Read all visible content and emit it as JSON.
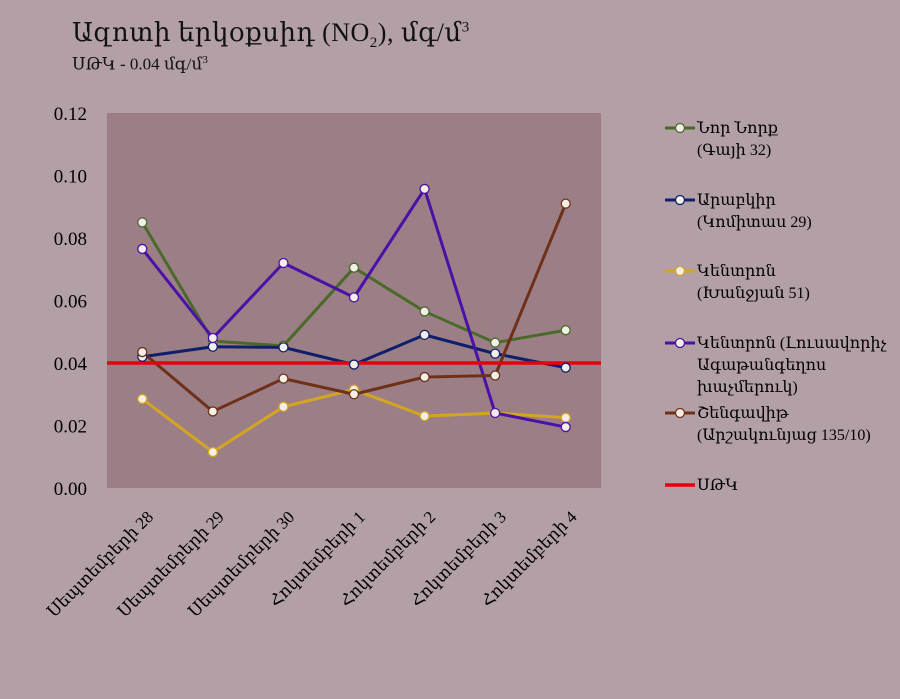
{
  "title": {
    "text": "Ազոտի  երկօքսիդ (NO",
    "sub": "2",
    "tail": "), մգ/մ",
    "sup": "3"
  },
  "subtitle": {
    "text": "ՍԹԿ - 0.04 մգ/մ",
    "sup": "3"
  },
  "chart_data": {
    "type": "line",
    "categories": [
      "Սեպտեմբերի 28",
      "Սեպտեմբերի 29",
      "Սեպտեմբերի 30",
      "Հոկտեմբերի 1",
      "Հոկտեմբերի 2",
      "Հոկտեմբերի 3",
      "Հոկտեմբերի 4"
    ],
    "ylim": [
      0,
      0.12
    ],
    "yticks": [
      "0.00",
      "0.02",
      "0.04",
      "0.06",
      "0.08",
      "0.10",
      "0.12"
    ],
    "grid": false,
    "legend_position": "right",
    "plot_bg": "#9c7f86",
    "series": [
      {
        "name_lines": [
          "Նոր Նորք",
          "(Գայի 32)"
        ],
        "color": "#4a6a2a",
        "values": [
          0.085,
          0.047,
          0.0455,
          0.0705,
          0.0565,
          0.0465,
          0.0505
        ]
      },
      {
        "name_lines": [
          "Արաբկիր",
          "(Կոմիտաս 29)"
        ],
        "color": "#0f1f6b",
        "values": [
          0.042,
          0.0452,
          0.045,
          0.0395,
          0.049,
          0.043,
          0.0385
        ]
      },
      {
        "name_lines": [
          "Կենտրոն",
          "(Խանջյան 51)"
        ],
        "color": "#d4a520",
        "values": [
          0.0285,
          0.0115,
          0.026,
          0.0315,
          0.023,
          0.024,
          0.0225
        ]
      },
      {
        "name_lines": [
          "Կենտրոն (Լուսավորիչ",
          "Ագաթանգեղոս",
          "խաչմերուկ)"
        ],
        "color": "#4b10a8",
        "values": [
          0.0765,
          0.048,
          0.072,
          0.061,
          0.0957,
          0.024,
          0.0195
        ]
      },
      {
        "name_lines": [
          "Շենգավիթ",
          "(Արշակունյաց 135/10)"
        ],
        "color": "#6e3018",
        "values": [
          0.0435,
          0.0245,
          0.035,
          0.03,
          0.0355,
          0.036,
          0.091
        ]
      }
    ],
    "threshold": {
      "name": "ՍԹԿ",
      "value": 0.04,
      "color": "#e8000d"
    }
  }
}
